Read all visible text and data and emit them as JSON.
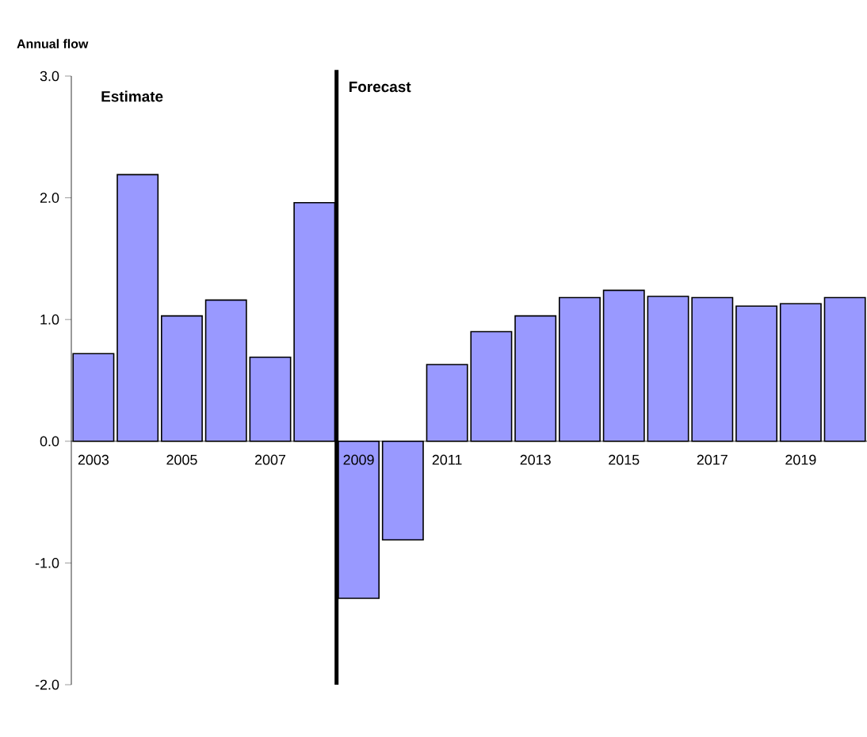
{
  "chart_data": {
    "type": "bar",
    "ylabel": "Annual flow",
    "x": [
      2003,
      2004,
      2005,
      2006,
      2007,
      2008,
      2009,
      2010,
      2011,
      2012,
      2013,
      2014,
      2015,
      2016,
      2017,
      2018,
      2019,
      2020
    ],
    "values": [
      0.72,
      2.19,
      1.03,
      1.16,
      0.69,
      1.96,
      -1.29,
      -0.81,
      0.63,
      0.9,
      1.03,
      1.18,
      1.24,
      1.19,
      1.18,
      1.11,
      1.13,
      1.18
    ],
    "color": "#9999ff",
    "xlim": [
      2002.5,
      2020.5
    ],
    "xticks": [
      2003,
      2005,
      2007,
      2009,
      2011,
      2013,
      2015,
      2017,
      2019
    ],
    "ylim": [
      -2,
      3
    ],
    "yticks": [
      {
        "value": -2,
        "label": "-2.0"
      },
      {
        "value": -1,
        "label": "-1.0"
      },
      {
        "value": 0,
        "label": "0.0"
      },
      {
        "value": 1,
        "label": "1.0"
      },
      {
        "value": 2,
        "label": "2.0"
      },
      {
        "value": 3,
        "label": "3.0"
      }
    ],
    "ref_lines": [
      {
        "axis": "x",
        "value": 2008.5,
        "color": "#000000"
      }
    ],
    "annotations": [
      "Estimate",
      "Forecast"
    ],
    "grid": false
  }
}
